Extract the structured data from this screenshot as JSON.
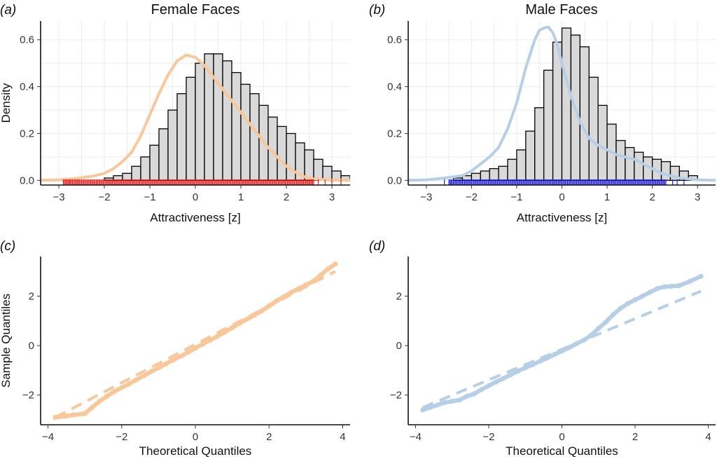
{
  "colors": {
    "female": "#f9c89a",
    "male": "#b7cfe6",
    "female_rug": "#e31a1c",
    "male_rug": "#1f1fd0",
    "bar_fill": "#d9d9d9",
    "bar_stroke": "#000000"
  },
  "chart_data": [
    {
      "id": "a",
      "type": "bar",
      "tag": "(a)",
      "title": "Female Faces",
      "xlabel": "Attractiveness [z]",
      "ylabel": "Density",
      "xlim": [
        -3.4,
        3.4
      ],
      "ylim": [
        -0.02,
        0.68
      ],
      "xticks": [
        -3,
        -2,
        -1,
        0,
        1,
        2,
        3
      ],
      "yticks": [
        0.0,
        0.2,
        0.4,
        0.6
      ],
      "grid": true,
      "bin_width": 0.2,
      "bin_start": -2.0,
      "values": [
        0.01,
        0.02,
        0.03,
        0.06,
        0.1,
        0.15,
        0.22,
        0.3,
        0.37,
        0.44,
        0.5,
        0.54,
        0.54,
        0.51,
        0.46,
        0.41,
        0.37,
        0.32,
        0.27,
        0.23,
        0.2,
        0.16,
        0.13,
        0.09,
        0.06,
        0.04,
        0.02
      ],
      "density_curve": {
        "x": [
          -3.4,
          -3.0,
          -2.6,
          -2.4,
          -2.2,
          -2.0,
          -1.8,
          -1.6,
          -1.4,
          -1.2,
          -1.0,
          -0.8,
          -0.6,
          -0.4,
          -0.2,
          0.0,
          0.2,
          0.4,
          0.6,
          0.8,
          1.0,
          1.2,
          1.4,
          1.6,
          1.8,
          2.0,
          2.2,
          2.4,
          2.6,
          3.0,
          3.4
        ],
        "y": [
          0.0,
          0.002,
          0.008,
          0.014,
          0.02,
          0.03,
          0.05,
          0.08,
          0.12,
          0.19,
          0.28,
          0.37,
          0.45,
          0.51,
          0.535,
          0.525,
          0.49,
          0.44,
          0.39,
          0.34,
          0.29,
          0.24,
          0.19,
          0.14,
          0.1,
          0.06,
          0.035,
          0.015,
          0.006,
          0.001,
          0.0
        ]
      },
      "rug": {
        "min": -2.9,
        "max": 2.6,
        "outliers": [
          -2.9,
          -2.8,
          -2.75,
          -2.6,
          2.7,
          2.85,
          3.0,
          3.2
        ]
      }
    },
    {
      "id": "b",
      "type": "bar",
      "tag": "(b)",
      "title": "Male Faces",
      "xlabel": "Attractiveness [z]",
      "ylabel": "",
      "xlim": [
        -3.4,
        3.4
      ],
      "ylim": [
        -0.02,
        0.68
      ],
      "xticks": [
        -3,
        -2,
        -1,
        0,
        1,
        2,
        3
      ],
      "yticks": [
        0.0,
        0.2,
        0.4,
        0.6
      ],
      "grid": true,
      "bin_width": 0.2,
      "bin_start": -2.4,
      "values": [
        0.01,
        0.02,
        0.03,
        0.04,
        0.05,
        0.06,
        0.09,
        0.13,
        0.21,
        0.31,
        0.47,
        0.59,
        0.65,
        0.62,
        0.57,
        0.44,
        0.32,
        0.24,
        0.17,
        0.14,
        0.12,
        0.1,
        0.09,
        0.08,
        0.06,
        0.04,
        0.02
      ],
      "density_curve": {
        "x": [
          -3.4,
          -3.0,
          -2.6,
          -2.2,
          -2.0,
          -1.8,
          -1.6,
          -1.4,
          -1.2,
          -1.0,
          -0.8,
          -0.6,
          -0.5,
          -0.4,
          -0.3,
          -0.2,
          -0.1,
          0.0,
          0.2,
          0.4,
          0.6,
          0.8,
          1.0,
          1.2,
          1.4,
          1.6,
          1.8,
          2.0,
          2.2,
          2.6,
          3.0,
          3.4
        ],
        "y": [
          0.0,
          0.002,
          0.01,
          0.02,
          0.04,
          0.07,
          0.1,
          0.14,
          0.22,
          0.33,
          0.48,
          0.6,
          0.64,
          0.65,
          0.655,
          0.63,
          0.58,
          0.5,
          0.36,
          0.25,
          0.18,
          0.15,
          0.13,
          0.11,
          0.1,
          0.09,
          0.07,
          0.05,
          0.03,
          0.01,
          0.002,
          0.0
        ]
      },
      "rug": {
        "min": -2.5,
        "max": 2.3,
        "outliers": [
          -2.6,
          -2.45,
          2.45,
          2.55,
          2.7
        ]
      }
    },
    {
      "id": "c",
      "type": "scatter",
      "tag": "(c)",
      "title": "",
      "xlabel": "Theoretical Quantiles",
      "ylabel": "Sample Quantiles",
      "xlim": [
        -4.2,
        4.2
      ],
      "ylim": [
        -3.2,
        3.6
      ],
      "xticks": [
        -4,
        -2,
        0,
        2,
        4
      ],
      "yticks": [
        -2,
        0,
        2
      ],
      "grid": false,
      "points": {
        "x": [
          -3.8,
          -3.5,
          -3.3,
          -3.0,
          -2.8,
          -2.6,
          -2.4,
          -2.2,
          -2.0,
          -1.8,
          -1.6,
          -1.4,
          -1.2,
          -1.0,
          -0.8,
          -0.6,
          -0.4,
          -0.2,
          0.0,
          0.2,
          0.4,
          0.6,
          0.8,
          1.0,
          1.2,
          1.4,
          1.6,
          1.8,
          2.0,
          2.2,
          2.4,
          2.6,
          2.8,
          3.0,
          3.2,
          3.4,
          3.6,
          3.8
        ],
        "y": [
          -2.9,
          -2.85,
          -2.8,
          -2.75,
          -2.5,
          -2.25,
          -2.05,
          -1.85,
          -1.7,
          -1.55,
          -1.38,
          -1.22,
          -1.05,
          -0.9,
          -0.74,
          -0.58,
          -0.43,
          -0.27,
          -0.1,
          0.06,
          0.22,
          0.38,
          0.55,
          0.72,
          0.9,
          1.07,
          1.23,
          1.4,
          1.6,
          1.8,
          1.97,
          2.15,
          2.3,
          2.45,
          2.6,
          2.85,
          3.1,
          3.3
        ]
      },
      "reference_line": {
        "x": [
          -3.8,
          3.8
        ],
        "y": [
          -2.9,
          3.0
        ]
      }
    },
    {
      "id": "d",
      "type": "scatter",
      "tag": "(d)",
      "title": "",
      "xlabel": "Theoretical Quantiles",
      "ylabel": "",
      "xlim": [
        -4.2,
        4.2
      ],
      "ylim": [
        -3.2,
        3.6
      ],
      "xticks": [
        -4,
        -2,
        0,
        2,
        4
      ],
      "yticks": [
        -2,
        0,
        2
      ],
      "grid": false,
      "points": {
        "x": [
          -3.8,
          -3.6,
          -3.4,
          -3.2,
          -3.0,
          -2.8,
          -2.6,
          -2.4,
          -2.2,
          -2.0,
          -1.8,
          -1.6,
          -1.4,
          -1.2,
          -1.0,
          -0.8,
          -0.6,
          -0.4,
          -0.2,
          0.0,
          0.2,
          0.4,
          0.6,
          0.8,
          1.0,
          1.2,
          1.4,
          1.6,
          1.8,
          2.0,
          2.2,
          2.4,
          2.6,
          2.8,
          3.0,
          3.2,
          3.5,
          3.8
        ],
        "y": [
          -2.6,
          -2.5,
          -2.4,
          -2.3,
          -2.25,
          -2.2,
          -2.05,
          -1.95,
          -1.78,
          -1.62,
          -1.47,
          -1.33,
          -1.18,
          -1.03,
          -0.9,
          -0.77,
          -0.63,
          -0.5,
          -0.36,
          -0.22,
          -0.08,
          0.08,
          0.22,
          0.42,
          0.7,
          0.95,
          1.25,
          1.5,
          1.7,
          1.85,
          2.0,
          2.15,
          2.3,
          2.38,
          2.4,
          2.42,
          2.6,
          2.8
        ]
      },
      "reference_line": {
        "x": [
          -3.8,
          3.8
        ],
        "y": [
          -2.5,
          2.2
        ]
      }
    }
  ]
}
